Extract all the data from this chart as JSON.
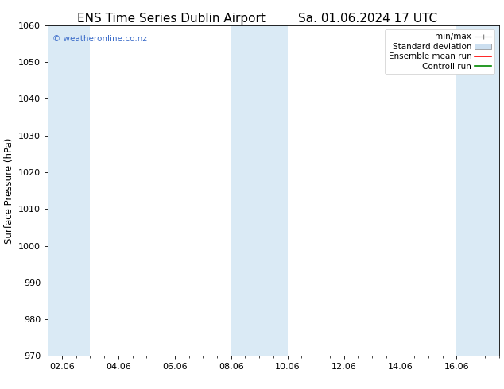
{
  "title_left": "ENS Time Series Dublin Airport",
  "title_right": "Sa. 01.06.2024 17 UTC",
  "ylabel": "Surface Pressure (hPa)",
  "xlabel": "",
  "ylim": [
    970,
    1060
  ],
  "yticks": [
    970,
    980,
    990,
    1000,
    1010,
    1020,
    1030,
    1040,
    1050,
    1060
  ],
  "xtick_labels": [
    "02.06",
    "04.06",
    "06.06",
    "08.06",
    "10.06",
    "12.06",
    "14.06",
    "16.06"
  ],
  "xtick_positions": [
    0,
    2,
    4,
    6,
    8,
    10,
    12,
    14
  ],
  "xlim": [
    -0.5,
    15.5
  ],
  "background_color": "#ffffff",
  "plot_bg_color": "#ffffff",
  "watermark": "© weatheronline.co.nz",
  "watermark_color": "#3a6bc9",
  "shaded_bands": [
    {
      "x_start": -0.5,
      "x_end": 1.0,
      "color": "#daeaf5"
    },
    {
      "x_start": 6.0,
      "x_end": 8.0,
      "color": "#daeaf5"
    },
    {
      "x_start": 14.0,
      "x_end": 15.5,
      "color": "#daeaf5"
    }
  ],
  "legend_entries": [
    {
      "label": "min/max",
      "color": "#aaaaaa",
      "style": "minmax"
    },
    {
      "label": "Standard deviation",
      "color": "#ccdff0",
      "style": "stddev"
    },
    {
      "label": "Ensemble mean run",
      "color": "#ff0000",
      "style": "line"
    },
    {
      "label": "Controll run",
      "color": "#008800",
      "style": "line"
    }
  ],
  "title_fontsize": 11,
  "axis_fontsize": 8.5,
  "tick_fontsize": 8,
  "legend_fontsize": 7.5
}
